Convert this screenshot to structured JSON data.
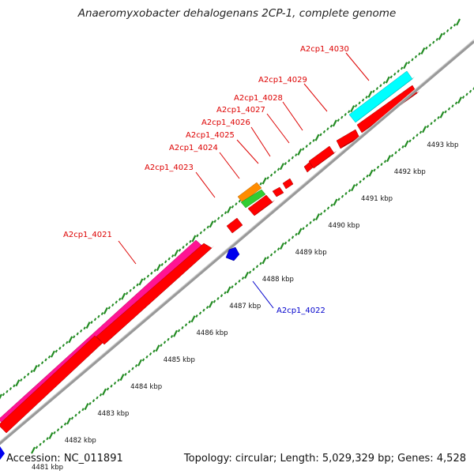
{
  "title": "Anaeromyxobacter dehalogenans 2CP-1, complete genome",
  "accession": "Accession: NC_011891",
  "summary": "Topology: circular; Length: 5,029,329 bp; Genes: 4,528",
  "colors": {
    "backbone": "#999999",
    "cds": "#ff0000",
    "magenta_gene": "#ff1493",
    "cyan_gene": "#00ffff",
    "orange_gene": "#ff8c00",
    "green_gene": "#32cd32",
    "reverse_gene": "#0000ee",
    "ticks": "#228b22",
    "label_forward": "#dd0000",
    "label_reverse": "#0000cc"
  },
  "kbp_ticks": [
    "4481 kbp",
    "4482 kbp",
    "4483 kbp",
    "4484 kbp",
    "4485 kbp",
    "4486 kbp",
    "4487 kbp",
    "4488 kbp",
    "4489 kbp",
    "4490 kbp",
    "4491 kbp",
    "4492 kbp",
    "4493 kbp"
  ],
  "gene_labels": {
    "A2cp1_4021": "A2cp1_4021",
    "A2cp1_4022": "A2cp1_4022",
    "A2cp1_4023": "A2cp1_4023",
    "A2cp1_4024": "A2cp1_4024",
    "A2cp1_4025": "A2cp1_4025",
    "A2cp1_4026": "A2cp1_4026",
    "A2cp1_4027": "A2cp1_4027",
    "A2cp1_4028": "A2cp1_4028",
    "A2cp1_4029": "A2cp1_4029",
    "A2cp1_4030": "A2cp1_4030"
  }
}
